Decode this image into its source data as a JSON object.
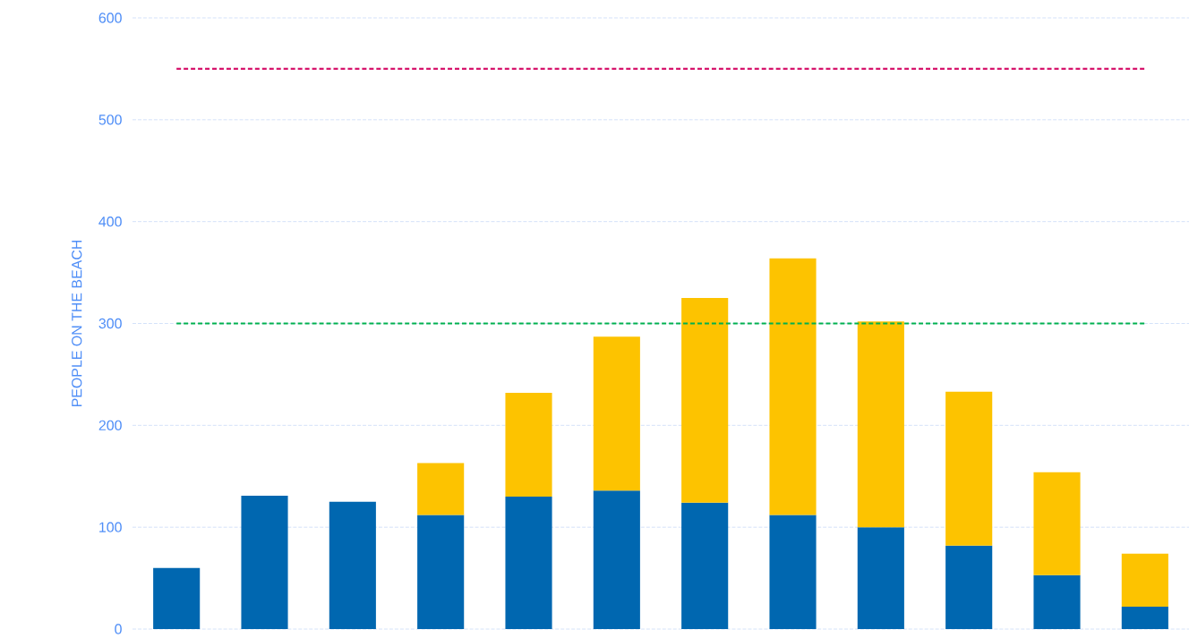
{
  "chart_data": {
    "type": "bar",
    "stacked": true,
    "ylabel": "PEOPLE ON THE BEACH",
    "categories": [
      null,
      null,
      null,
      null,
      null,
      null,
      null,
      null,
      null,
      null,
      null,
      null
    ],
    "series": [
      {
        "color": "#0067b0",
        "values": [
          60,
          131,
          125,
          112,
          130,
          136,
          124,
          112,
          100,
          82,
          53,
          22
        ]
      },
      {
        "color": "#fdc300",
        "values": [
          null,
          null,
          null,
          51,
          102,
          151,
          201,
          252,
          202,
          151,
          101,
          52
        ]
      }
    ],
    "ylim": [
      0,
      600
    ],
    "yticks": [
      0,
      100,
      200,
      300,
      400,
      500,
      600
    ],
    "grid": "y",
    "tick_labels": "y",
    "ref_lines": [
      {
        "axis": "y",
        "value": 550,
        "color": "#d6156c",
        "line_style": "dashed"
      },
      {
        "axis": "y",
        "value": 300,
        "color": "#00b04f",
        "line_style": "dashed"
      }
    ]
  }
}
